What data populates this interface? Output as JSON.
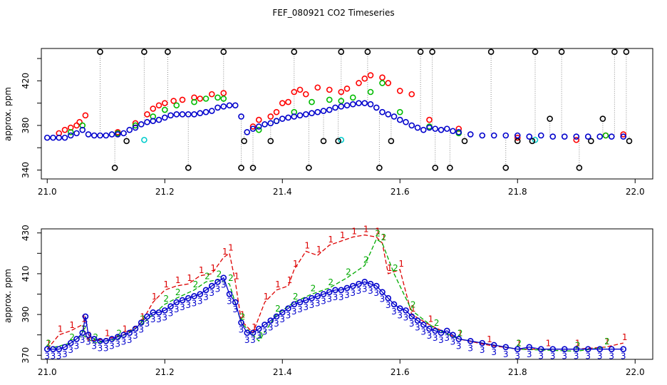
{
  "title": "FEF_080921  CO2 Timeseries",
  "chart_data": [
    {
      "type": "scatter",
      "ylabel": "approx. ppm",
      "xlabel": "",
      "xlim": [
        20.99,
        22.03
      ],
      "ylim": [
        332,
        449
      ],
      "xticks": [
        21.0,
        21.2,
        21.4,
        21.6,
        21.8,
        22.0
      ],
      "xtick_labels": [
        "21.0",
        "21.2",
        "21.4",
        "21.6",
        "21.8",
        "22.0"
      ],
      "yticks": [
        340,
        360,
        380,
        400,
        420,
        440
      ],
      "ytick_labels": [
        "340",
        "",
        "380",
        "",
        "420",
        ""
      ],
      "series": [
        {
          "name": "black",
          "color": "#000000",
          "x": [
            21.09,
            21.115,
            21.135,
            21.165,
            21.205,
            21.24,
            21.3,
            21.33,
            21.335,
            21.35,
            21.38,
            21.42,
            21.445,
            21.47,
            21.495,
            21.5,
            21.545,
            21.565,
            21.585,
            21.635,
            21.655,
            21.66,
            21.685,
            21.71,
            21.755,
            21.78,
            21.8,
            21.825,
            21.83,
            21.855,
            21.875,
            21.905,
            21.925,
            21.945,
            21.965,
            21.985,
            21.99
          ],
          "y": [
            446,
            342,
            366,
            446,
            446,
            342,
            446,
            342,
            366,
            342,
            366,
            446,
            342,
            366,
            366,
            446,
            446,
            342,
            366,
            446,
            446,
            342,
            342,
            366,
            446,
            342,
            366,
            366,
            446,
            386,
            446,
            342,
            366,
            386,
            446,
            446,
            366
          ]
        },
        {
          "name": "red",
          "color": "#ff0000",
          "x": [
            21.02,
            21.03,
            21.04,
            21.05,
            21.055,
            21.065,
            21.12,
            21.15,
            21.17,
            21.18,
            21.19,
            21.2,
            21.215,
            21.23,
            21.25,
            21.26,
            21.28,
            21.3,
            21.35,
            21.36,
            21.38,
            21.39,
            21.4,
            21.41,
            21.42,
            21.43,
            21.44,
            21.46,
            21.48,
            21.5,
            21.51,
            21.53,
            21.54,
            21.55,
            21.57,
            21.58,
            21.6,
            21.62,
            21.65,
            21.7,
            21.8,
            21.9,
            21.95,
            21.98
          ],
          "y": [
            373,
            376,
            378,
            380,
            383,
            389,
            374,
            382,
            390,
            395,
            398,
            400,
            402,
            403,
            405,
            404,
            408,
            409,
            379,
            385,
            388,
            392,
            400,
            401,
            410,
            412,
            408,
            414,
            412,
            410,
            413,
            418,
            422,
            425,
            423,
            418,
            411,
            408,
            385,
            377,
            369,
            367,
            371,
            372
          ]
        },
        {
          "name": "green",
          "color": "#00bb00",
          "x": [
            21.04,
            21.06,
            21.12,
            21.15,
            21.18,
            21.2,
            21.22,
            21.25,
            21.27,
            21.29,
            21.3,
            21.36,
            21.39,
            21.42,
            21.45,
            21.48,
            21.5,
            21.52,
            21.55,
            21.57,
            21.6,
            21.65,
            21.7,
            21.95
          ],
          "y": [
            374,
            380,
            373,
            380,
            388,
            394,
            398,
            401,
            404,
            405,
            404,
            376,
            384,
            392,
            401,
            403,
            402,
            405,
            410,
            418,
            392,
            379,
            373,
            371
          ]
        },
        {
          "name": "blue",
          "color": "#0000cc",
          "x": [
            21.0,
            21.01,
            21.02,
            21.03,
            21.04,
            21.05,
            21.06,
            21.07,
            21.08,
            21.09,
            21.1,
            21.11,
            21.12,
            21.13,
            21.14,
            21.15,
            21.16,
            21.17,
            21.18,
            21.19,
            21.2,
            21.21,
            21.22,
            21.23,
            21.24,
            21.25,
            21.26,
            21.27,
            21.28,
            21.29,
            21.3,
            21.31,
            21.32,
            21.33,
            21.34,
            21.35,
            21.36,
            21.37,
            21.38,
            21.39,
            21.4,
            21.41,
            21.42,
            21.43,
            21.44,
            21.45,
            21.46,
            21.47,
            21.48,
            21.49,
            21.5,
            21.51,
            21.52,
            21.53,
            21.54,
            21.55,
            21.56,
            21.57,
            21.58,
            21.59,
            21.6,
            21.61,
            21.62,
            21.63,
            21.64,
            21.65,
            21.66,
            21.67,
            21.68,
            21.69,
            21.7,
            21.72,
            21.74,
            21.76,
            21.78,
            21.8,
            21.82,
            21.84,
            21.86,
            21.88,
            21.9,
            21.92,
            21.94,
            21.96,
            21.98
          ],
          "y": [
            369,
            369,
            369,
            369,
            371,
            373,
            376,
            372,
            371,
            371,
            371,
            372,
            372,
            373,
            376,
            378,
            381,
            383,
            384,
            385,
            387,
            389,
            390,
            390,
            390,
            390,
            391,
            392,
            393,
            396,
            397,
            398,
            398,
            388,
            374,
            377,
            379,
            381,
            382,
            384,
            386,
            387,
            388,
            389,
            390,
            391,
            392,
            393,
            394,
            396,
            397,
            398,
            399,
            400,
            400,
            399,
            396,
            392,
            390,
            388,
            385,
            383,
            380,
            378,
            376,
            378,
            377,
            376,
            377,
            375,
            374,
            372,
            371,
            371,
            371,
            371,
            370,
            371,
            370,
            370,
            370,
            370,
            370,
            370,
            370
          ]
        },
        {
          "name": "cyan",
          "color": "#00cccc",
          "x": [
            21.165,
            21.5,
            21.83
          ],
          "y": [
            367,
            367,
            367
          ]
        }
      ]
    },
    {
      "type": "line",
      "ylabel": "approx. ppm",
      "xlabel": "",
      "xlim": [
        20.99,
        22.03
      ],
      "ylim": [
        368,
        432
      ],
      "xticks": [
        21.0,
        21.2,
        21.4,
        21.6,
        21.8,
        22.0
      ],
      "xtick_labels": [
        "21.0",
        "21.2",
        "21.4",
        "21.6",
        "21.8",
        "22.0"
      ],
      "yticks": [
        370,
        380,
        390,
        400,
        410,
        420,
        430
      ],
      "ytick_labels": [
        "370",
        "",
        "390",
        "",
        "410",
        "",
        "430"
      ],
      "series": [
        {
          "name": "1",
          "color": "#dd0000",
          "marker": "1",
          "x": [
            21.0,
            21.02,
            21.04,
            21.06,
            21.07,
            21.1,
            21.13,
            21.16,
            21.18,
            21.2,
            21.22,
            21.24,
            21.26,
            21.28,
            21.3,
            21.31,
            21.32,
            21.33,
            21.35,
            21.37,
            21.39,
            21.41,
            21.42,
            21.44,
            21.46,
            21.48,
            21.5,
            21.52,
            21.54,
            21.56,
            21.57,
            21.58,
            21.6,
            21.62,
            21.65,
            21.7,
            21.75,
            21.8,
            21.85,
            21.9,
            21.95,
            21.98
          ],
          "y": [
            373,
            380,
            382,
            385,
            377,
            378,
            380,
            386,
            396,
            402,
            404,
            405,
            409,
            410,
            418,
            420,
            406,
            387,
            381,
            396,
            402,
            404,
            412,
            421,
            419,
            424,
            426,
            428,
            429,
            428,
            425,
            410,
            412,
            390,
            385,
            378,
            375,
            373,
            373,
            373,
            374,
            376
          ]
        },
        {
          "name": "2",
          "color": "#00aa00",
          "marker": "2",
          "x": [
            21.0,
            21.04,
            21.06,
            21.08,
            21.12,
            21.16,
            21.2,
            21.22,
            21.25,
            21.27,
            21.29,
            21.31,
            21.33,
            21.36,
            21.39,
            21.42,
            21.45,
            21.48,
            21.51,
            21.54,
            21.56,
            21.57,
            21.59,
            21.62,
            21.66,
            21.7,
            21.8,
            21.9,
            21.95
          ],
          "y": [
            373,
            376,
            380,
            376,
            378,
            385,
            395,
            398,
            402,
            406,
            407,
            405,
            386,
            377,
            390,
            396,
            400,
            403,
            408,
            414,
            427,
            425,
            410,
            392,
            383,
            378,
            373,
            372,
            374
          ]
        },
        {
          "name": "3",
          "color": "#0000cc",
          "marker": "3",
          "x": [
            21.0,
            21.01,
            21.02,
            21.03,
            21.04,
            21.05,
            21.06,
            21.065,
            21.07,
            21.08,
            21.09,
            21.1,
            21.11,
            21.12,
            21.13,
            21.14,
            21.15,
            21.16,
            21.17,
            21.18,
            21.19,
            21.2,
            21.21,
            21.22,
            21.23,
            21.24,
            21.25,
            21.26,
            21.27,
            21.28,
            21.29,
            21.3,
            21.31,
            21.32,
            21.33,
            21.34,
            21.35,
            21.36,
            21.37,
            21.38,
            21.39,
            21.4,
            21.41,
            21.42,
            21.43,
            21.44,
            21.45,
            21.46,
            21.47,
            21.48,
            21.49,
            21.5,
            21.51,
            21.52,
            21.53,
            21.54,
            21.55,
            21.56,
            21.57,
            21.58,
            21.59,
            21.6,
            21.61,
            21.62,
            21.63,
            21.64,
            21.65,
            21.66,
            21.67,
            21.68,
            21.69,
            21.7,
            21.72,
            21.74,
            21.76,
            21.78,
            21.8,
            21.82,
            21.84,
            21.86,
            21.88,
            21.9,
            21.92,
            21.94,
            21.96,
            21.98
          ],
          "y": [
            373,
            373,
            373,
            374,
            376,
            378,
            381,
            389,
            380,
            378,
            377,
            377,
            378,
            379,
            380,
            381,
            383,
            386,
            389,
            391,
            391,
            392,
            394,
            396,
            397,
            398,
            399,
            400,
            402,
            404,
            406,
            408,
            400,
            396,
            386,
            381,
            381,
            383,
            385,
            387,
            389,
            391,
            393,
            395,
            396,
            397,
            398,
            399,
            400,
            401,
            402,
            402,
            403,
            404,
            405,
            406,
            405,
            404,
            401,
            398,
            395,
            393,
            392,
            389,
            387,
            385,
            383,
            382,
            381,
            382,
            380,
            378,
            377,
            376,
            375,
            374,
            373,
            374,
            373,
            373,
            373,
            373,
            373,
            373,
            373,
            373
          ]
        }
      ]
    }
  ]
}
